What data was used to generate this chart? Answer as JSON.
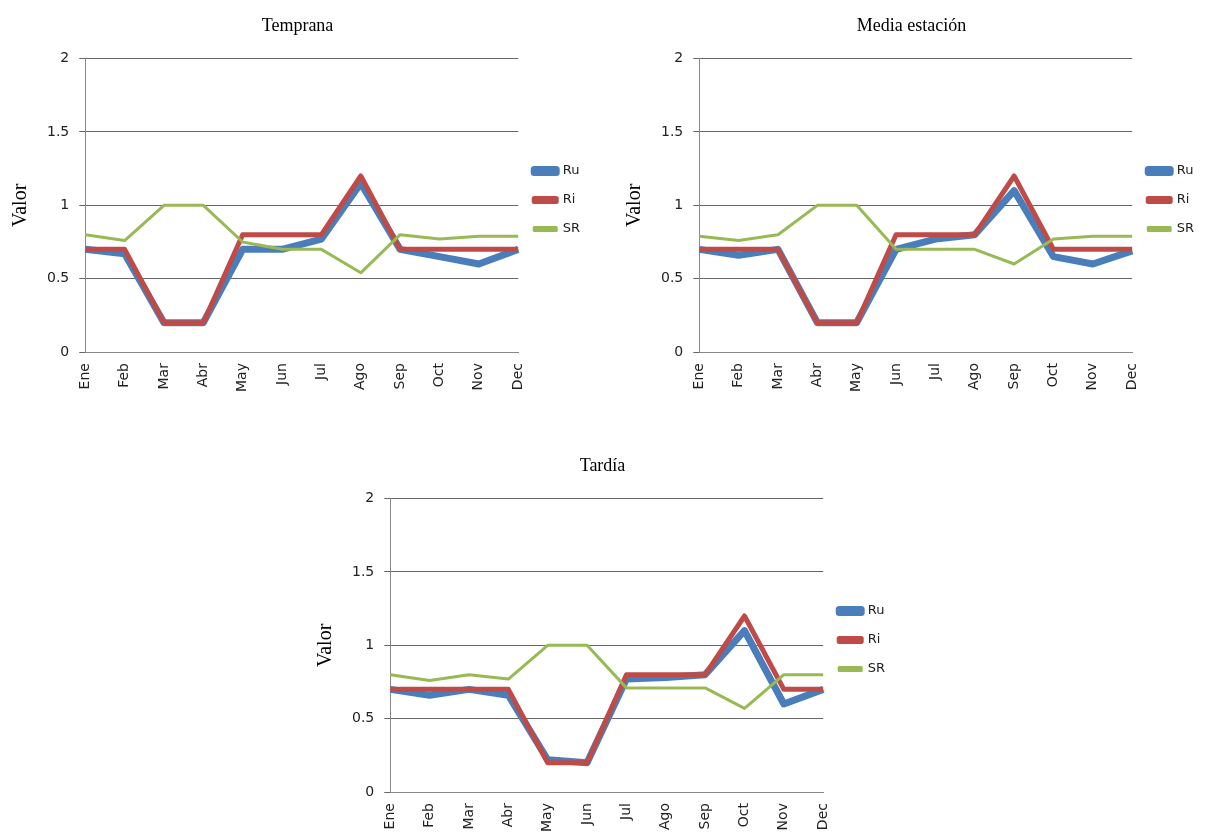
{
  "chart_data": [
    {
      "type": "line",
      "title": "Temprana",
      "ylabel": "Valor",
      "categories": [
        "Ene",
        "Feb",
        "Mar",
        "Abr",
        "May",
        "Jun",
        "Jul",
        "Ago",
        "Sep",
        "Oct",
        "Nov",
        "Dec"
      ],
      "ylim": [
        0,
        2
      ],
      "yticks": [
        0,
        0.5,
        1,
        1.5,
        2
      ],
      "grid": "y",
      "legend": "right",
      "marker": "none",
      "series": [
        {
          "name": "Ru",
          "color": "#4a7ebb",
          "values": [
            0.7,
            0.67,
            0.2,
            0.2,
            0.7,
            0.7,
            0.77,
            1.15,
            0.7,
            0.65,
            0.6,
            0.7
          ]
        },
        {
          "name": "Ri",
          "color": "#be4b48",
          "values": [
            0.7,
            0.7,
            0.2,
            0.2,
            0.8,
            0.8,
            0.8,
            1.2,
            0.7,
            0.7,
            0.7,
            0.7
          ]
        },
        {
          "name": "SR",
          "color": "#98b954",
          "values": [
            0.8,
            0.76,
            1.0,
            1.0,
            0.75,
            0.7,
            0.7,
            0.54,
            0.8,
            0.77,
            0.79,
            0.79
          ]
        }
      ]
    },
    {
      "type": "line",
      "title": "Media estación",
      "ylabel": "Valor",
      "categories": [
        "Ene",
        "Feb",
        "Mar",
        "Abr",
        "May",
        "Jun",
        "Jul",
        "Ago",
        "Sep",
        "Oct",
        "Nov",
        "Dec"
      ],
      "ylim": [
        0,
        2
      ],
      "yticks": [
        0,
        0.5,
        1,
        1.5,
        2
      ],
      "grid": "y",
      "legend": "right",
      "marker": "none",
      "series": [
        {
          "name": "Ru",
          "color": "#4a7ebb",
          "values": [
            0.7,
            0.66,
            0.7,
            0.2,
            0.2,
            0.7,
            0.77,
            0.8,
            1.1,
            0.65,
            0.6,
            0.69
          ]
        },
        {
          "name": "Ri",
          "color": "#be4b48",
          "values": [
            0.7,
            0.7,
            0.7,
            0.2,
            0.2,
            0.8,
            0.8,
            0.8,
            1.2,
            0.7,
            0.7,
            0.7
          ]
        },
        {
          "name": "SR",
          "color": "#98b954",
          "values": [
            0.79,
            0.76,
            0.8,
            1.0,
            1.0,
            0.7,
            0.7,
            0.7,
            0.6,
            0.77,
            0.79,
            0.79
          ]
        }
      ]
    },
    {
      "type": "line",
      "title": "Tardía",
      "ylabel": "Valor",
      "categories": [
        "Ene",
        "Feb",
        "Mar",
        "Abr",
        "May",
        "Jun",
        "Jul",
        "Ago",
        "Sep",
        "Oct",
        "Nov",
        "Dec"
      ],
      "ylim": [
        0,
        2
      ],
      "yticks": [
        0,
        0.5,
        1,
        1.5,
        2
      ],
      "grid": "y",
      "legend": "right",
      "marker": "none",
      "series": [
        {
          "name": "Ru",
          "color": "#4a7ebb",
          "values": [
            0.7,
            0.66,
            0.7,
            0.66,
            0.22,
            0.2,
            0.77,
            0.78,
            0.8,
            1.1,
            0.6,
            0.7
          ]
        },
        {
          "name": "Ri",
          "color": "#be4b48",
          "values": [
            0.7,
            0.7,
            0.7,
            0.7,
            0.2,
            0.2,
            0.8,
            0.8,
            0.8,
            1.2,
            0.7,
            0.7
          ]
        },
        {
          "name": "SR",
          "color": "#98b954",
          "values": [
            0.8,
            0.76,
            0.8,
            0.77,
            1.0,
            1.0,
            0.71,
            0.71,
            0.71,
            0.57,
            0.8,
            0.8
          ]
        }
      ]
    }
  ]
}
